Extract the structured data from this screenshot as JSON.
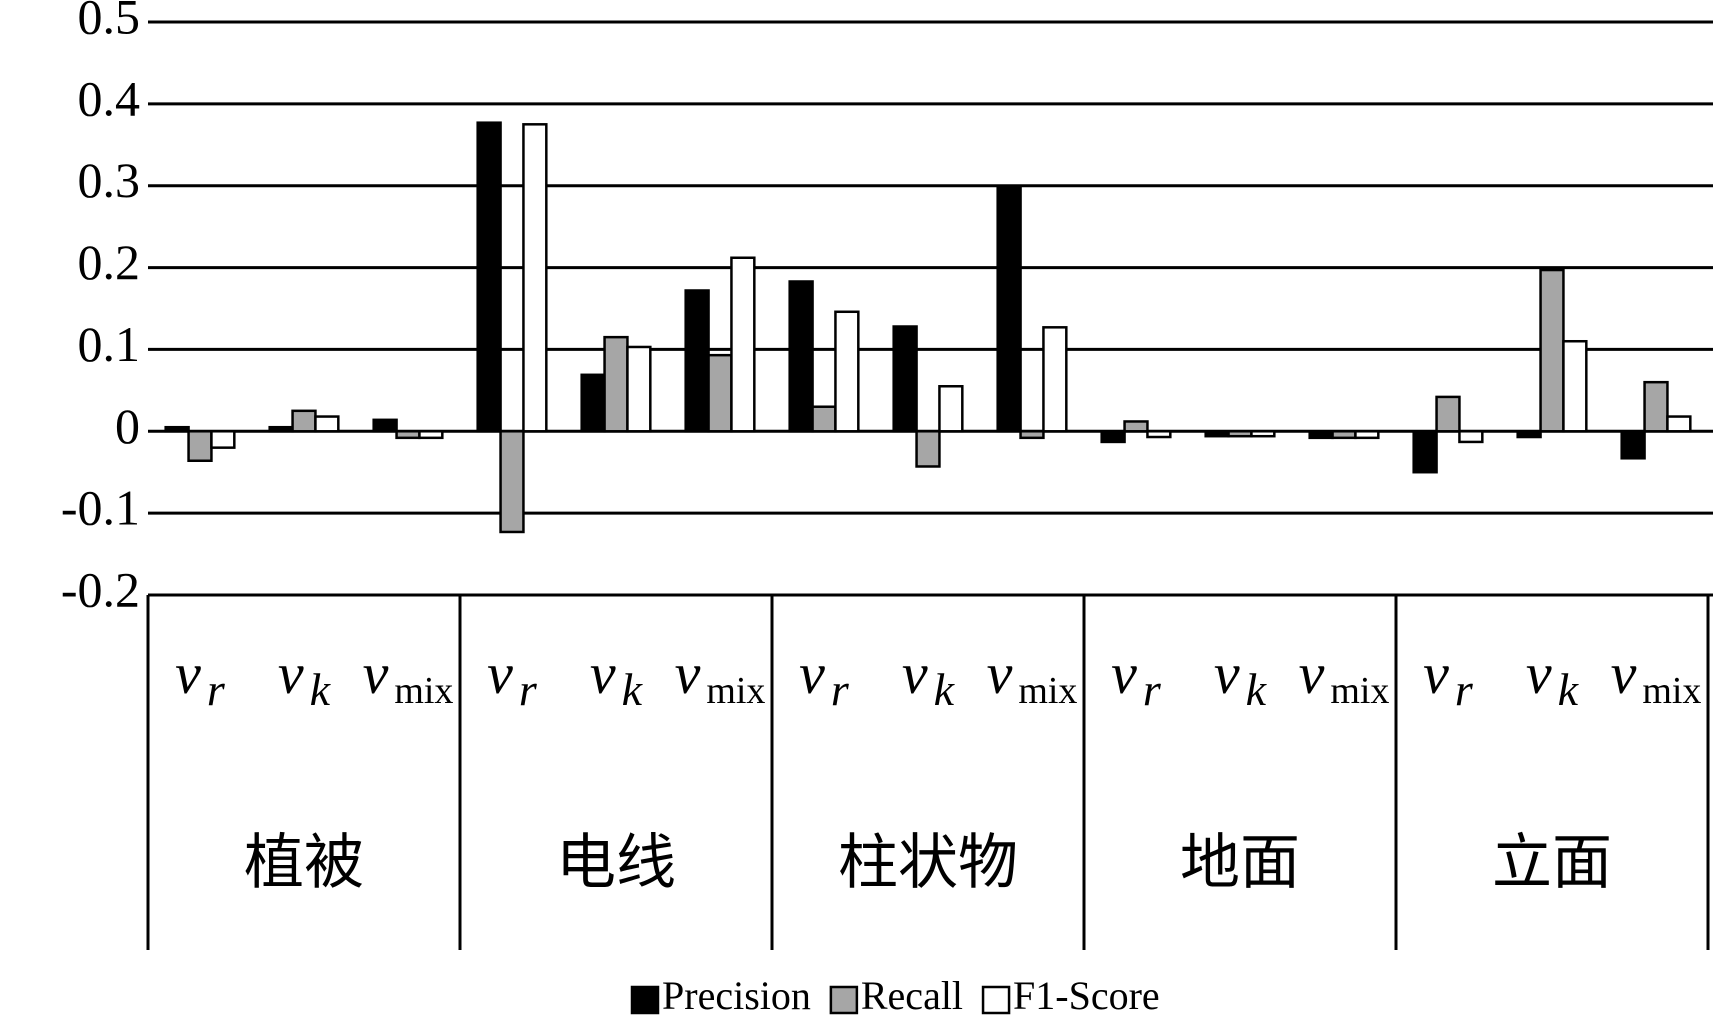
{
  "chart_data": {
    "type": "bar",
    "groups": [
      "植被",
      "电线",
      "柱状物",
      "地面",
      "立面"
    ],
    "categories": [
      {
        "main": "v",
        "sub": "r"
      },
      {
        "main": "v",
        "sub": "k"
      },
      {
        "main": "v",
        "sub": "mix"
      },
      {
        "main": "v",
        "sub": "r"
      },
      {
        "main": "v",
        "sub": "k"
      },
      {
        "main": "v",
        "sub": "mix"
      },
      {
        "main": "v",
        "sub": "r"
      },
      {
        "main": "v",
        "sub": "k"
      },
      {
        "main": "v",
        "sub": "mix"
      },
      {
        "main": "v",
        "sub": "r"
      },
      {
        "main": "v",
        "sub": "k"
      },
      {
        "main": "v",
        "sub": "mix"
      },
      {
        "main": "v",
        "sub": "r"
      },
      {
        "main": "v",
        "sub": "k"
      },
      {
        "main": "v",
        "sub": "mix"
      }
    ],
    "series": [
      {
        "name": "Precision",
        "color": "#000000",
        "values": [
          0.005,
          0.005,
          0.014,
          0.377,
          0.069,
          0.172,
          0.183,
          0.128,
          0.297,
          -0.013,
          -0.006,
          -0.008,
          -0.05,
          -0.007,
          -0.033
        ]
      },
      {
        "name": "Recall",
        "color": "#a6a6a6",
        "values": [
          -0.036,
          0.025,
          -0.008,
          -0.123,
          0.115,
          0.093,
          0.03,
          -0.043,
          -0.008,
          0.012,
          -0.006,
          -0.008,
          0.042,
          0.197,
          0.06
        ]
      },
      {
        "name": "F1-Score",
        "color": "#ffffff",
        "values": [
          -0.02,
          0.018,
          -0.008,
          0.375,
          0.103,
          0.212,
          0.146,
          0.055,
          0.127,
          -0.007,
          -0.006,
          -0.008,
          -0.013,
          0.11,
          0.018
        ]
      }
    ],
    "ylim": [
      -0.2,
      0.5
    ],
    "yticks": [
      -0.2,
      -0.1,
      0,
      0.1,
      0.2,
      0.3,
      0.4,
      0.5
    ],
    "grid": true,
    "legend": "bottom"
  }
}
